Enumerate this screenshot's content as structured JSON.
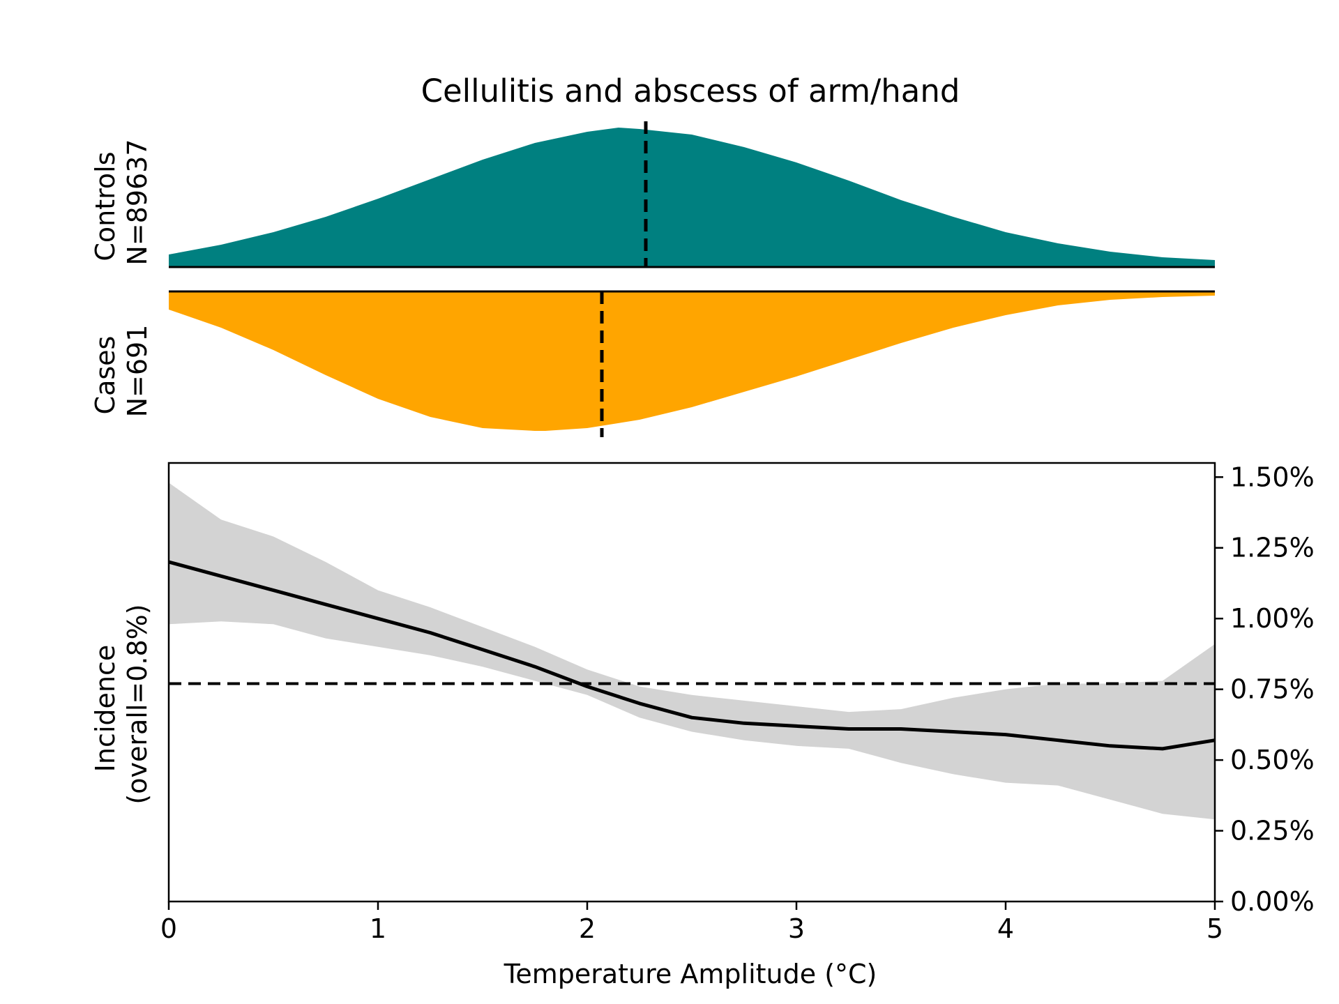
{
  "chart_data": [
    {
      "type": "area",
      "panel": "controls-density",
      "title": "Cellulitis and abscess of arm/hand",
      "ylabel_lines": [
        "Controls",
        "N=89637"
      ],
      "color": "#008080",
      "x": [
        0,
        0.25,
        0.5,
        0.75,
        1.0,
        1.25,
        1.5,
        1.75,
        2.0,
        2.15,
        2.25,
        2.5,
        2.75,
        3.0,
        3.25,
        3.5,
        3.75,
        4.0,
        4.25,
        4.5,
        4.75,
        5.0
      ],
      "density": [
        0.09,
        0.16,
        0.25,
        0.36,
        0.49,
        0.63,
        0.77,
        0.89,
        0.97,
        1.0,
        0.99,
        0.95,
        0.86,
        0.75,
        0.62,
        0.48,
        0.36,
        0.25,
        0.17,
        0.11,
        0.07,
        0.05
      ],
      "median": 2.28,
      "xlim": [
        0,
        5
      ]
    },
    {
      "type": "area",
      "panel": "cases-density",
      "ylabel_lines": [
        "Cases",
        "N=691"
      ],
      "color": "#FFA500",
      "x": [
        0,
        0.25,
        0.5,
        0.75,
        1.0,
        1.25,
        1.5,
        1.75,
        1.8,
        2.0,
        2.25,
        2.5,
        2.75,
        3.0,
        3.25,
        3.5,
        3.75,
        4.0,
        4.25,
        4.5,
        4.75,
        5.0
      ],
      "density": [
        0.13,
        0.26,
        0.42,
        0.6,
        0.77,
        0.9,
        0.98,
        1.0,
        1.0,
        0.98,
        0.92,
        0.83,
        0.72,
        0.61,
        0.49,
        0.37,
        0.26,
        0.17,
        0.1,
        0.06,
        0.04,
        0.03
      ],
      "median": 2.07,
      "xlim": [
        0,
        5
      ]
    },
    {
      "type": "line",
      "panel": "incidence",
      "xlabel": "Temperature Amplitude (°C)",
      "ylabel_lines": [
        "Incidence",
        "(overall=0.8%)"
      ],
      "xlim": [
        0,
        5
      ],
      "ylim": [
        0,
        1.55
      ],
      "xticks": [
        0,
        1,
        2,
        3,
        4,
        5
      ],
      "yticks": [
        0,
        0.25,
        0.5,
        0.75,
        1.0,
        1.25,
        1.5
      ],
      "ytick_labels": [
        "0.00%",
        "0.25%",
        "0.50%",
        "0.75%",
        "1.00%",
        "1.25%",
        "1.50%"
      ],
      "y_axis_side": "right",
      "overall_reference": 0.77,
      "x": [
        0,
        0.25,
        0.5,
        0.75,
        1.0,
        1.25,
        1.5,
        1.75,
        2.0,
        2.25,
        2.5,
        2.75,
        3.0,
        3.25,
        3.5,
        3.75,
        4.0,
        4.25,
        4.5,
        4.75,
        5.0
      ],
      "y": [
        1.2,
        1.15,
        1.1,
        1.05,
        1.0,
        0.95,
        0.89,
        0.83,
        0.76,
        0.7,
        0.65,
        0.63,
        0.62,
        0.61,
        0.61,
        0.6,
        0.59,
        0.57,
        0.55,
        0.54,
        0.57
      ],
      "ci_lower": [
        0.98,
        0.99,
        0.98,
        0.93,
        0.9,
        0.87,
        0.83,
        0.78,
        0.73,
        0.65,
        0.6,
        0.57,
        0.55,
        0.54,
        0.49,
        0.45,
        0.42,
        0.41,
        0.36,
        0.31,
        0.29
      ],
      "ci_upper": [
        1.48,
        1.35,
        1.29,
        1.2,
        1.1,
        1.04,
        0.97,
        0.9,
        0.82,
        0.76,
        0.73,
        0.71,
        0.69,
        0.67,
        0.68,
        0.72,
        0.75,
        0.77,
        0.77,
        0.78,
        0.91
      ],
      "band_color": "#d3d3d3",
      "line_color": "#000000"
    }
  ]
}
